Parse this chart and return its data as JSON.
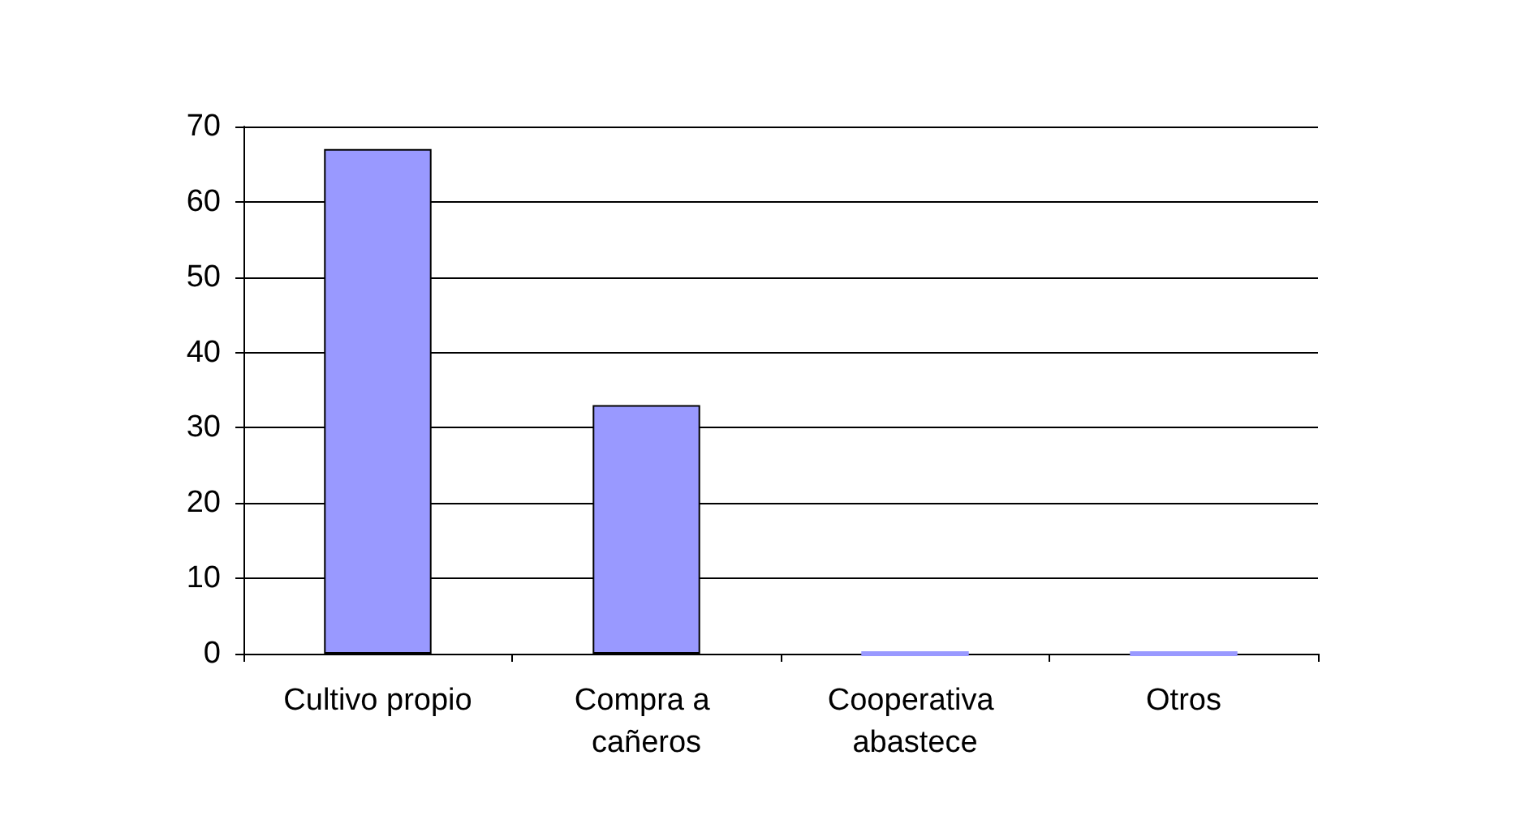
{
  "chart_data": {
    "type": "bar",
    "categories": [
      "Cultivo propio",
      "Compra a cañeros",
      "Cooperativa abastece",
      "Otros"
    ],
    "values": [
      67,
      33,
      0,
      0
    ],
    "color": "#9999ff",
    "ylim": [
      0,
      70
    ],
    "yticks": [
      0,
      10,
      20,
      30,
      40,
      50,
      60,
      70
    ],
    "grid": "y"
  }
}
